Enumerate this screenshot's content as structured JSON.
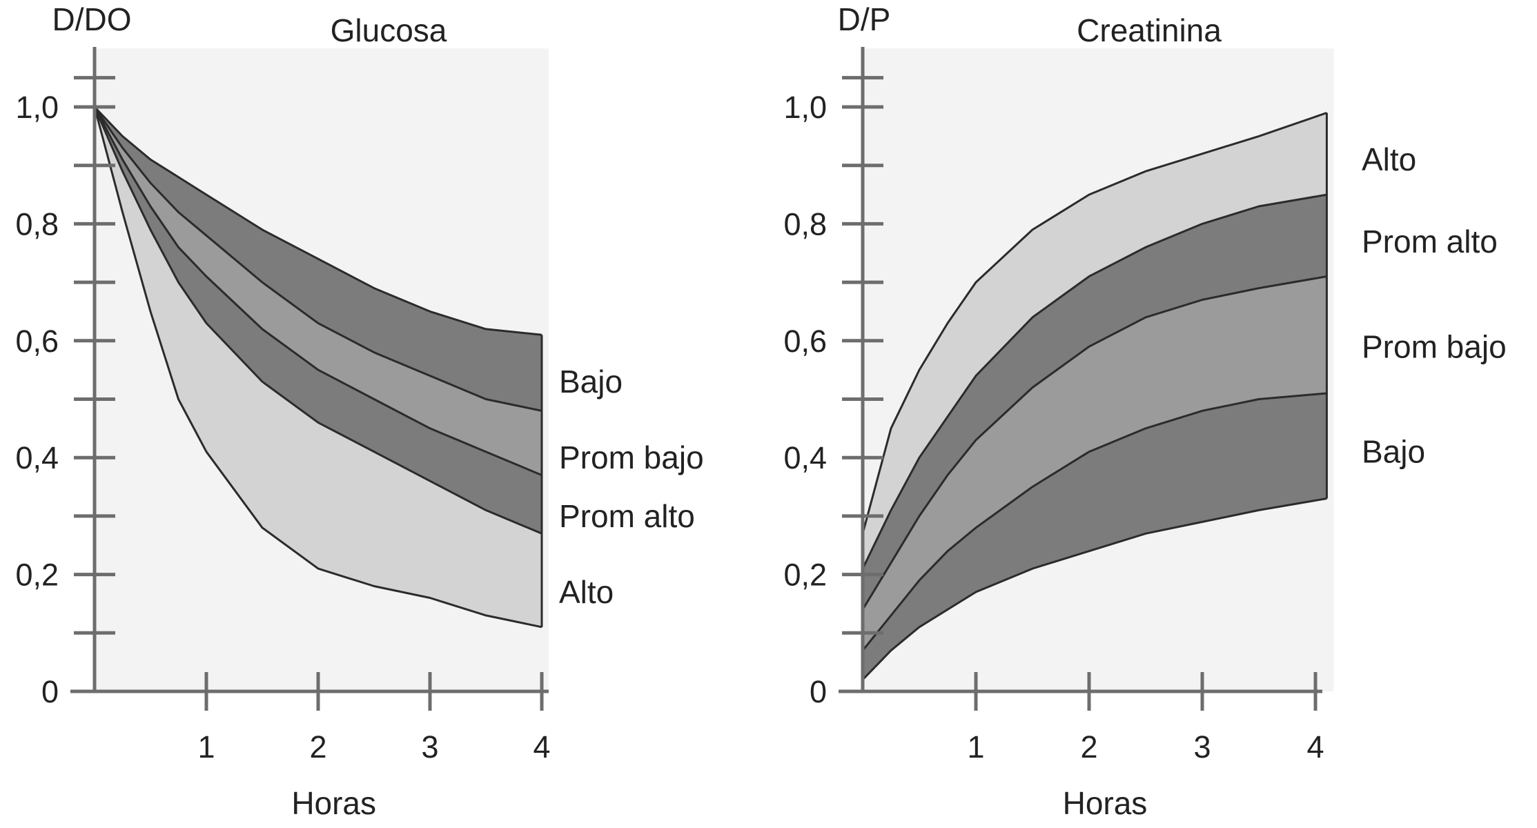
{
  "colors": {
    "band_light": "#d3d3d3",
    "band_mid": "#9b9b9b",
    "band_dark": "#7c7c7c",
    "line": "#2b2b2b",
    "axis": "#6d6d6d",
    "plot_bg": "#f3f3f3",
    "text": "#222222"
  },
  "chart_data": [
    {
      "type": "area",
      "title": "Glucosa",
      "ylabel": "D/DO",
      "xlabel": "Horas",
      "xlim": [
        0,
        4
      ],
      "ylim": [
        0,
        1.1
      ],
      "x_ticks": [
        1,
        2,
        3,
        4
      ],
      "x_tick_labels": [
        "1",
        "2",
        "3",
        "4"
      ],
      "y_labeled_ticks": [
        0,
        0.2,
        0.4,
        0.6,
        0.8,
        1.0
      ],
      "y_tick_labels": [
        "0",
        "0,2",
        "0,4",
        "0,6",
        "0,8",
        "1,0"
      ],
      "y_minor_ticks": [
        0.1,
        0.3,
        0.5,
        0.7,
        0.9,
        1.05
      ],
      "grid": false,
      "x": [
        0,
        0.25,
        0.5,
        0.75,
        1,
        1.5,
        2,
        2.5,
        3,
        3.5,
        4
      ],
      "boundaries": [
        [
          1.0,
          0.95,
          0.91,
          0.88,
          0.85,
          0.79,
          0.74,
          0.69,
          0.65,
          0.62,
          0.61
        ],
        [
          1.0,
          0.93,
          0.87,
          0.82,
          0.78,
          0.7,
          0.63,
          0.58,
          0.54,
          0.5,
          0.48
        ],
        [
          1.0,
          0.91,
          0.83,
          0.76,
          0.71,
          0.62,
          0.55,
          0.5,
          0.45,
          0.41,
          0.37
        ],
        [
          1.0,
          0.89,
          0.79,
          0.7,
          0.63,
          0.53,
          0.46,
          0.41,
          0.36,
          0.31,
          0.27
        ],
        [
          1.0,
          0.82,
          0.65,
          0.5,
          0.41,
          0.28,
          0.21,
          0.18,
          0.16,
          0.13,
          0.11
        ]
      ],
      "band_labels": [
        "Bajo",
        "Prom bajo",
        "Prom alto",
        "Alto"
      ],
      "band_label_values": [
        0.53,
        0.4,
        0.3,
        0.17
      ]
    },
    {
      "type": "area",
      "title": "Creatinina",
      "ylabel": "D/P",
      "xlabel": "Horas",
      "xlim": [
        0,
        4
      ],
      "ylim": [
        0,
        1.1
      ],
      "x_ticks": [
        1,
        2,
        3,
        4
      ],
      "x_tick_labels": [
        "1",
        "2",
        "3",
        "4"
      ],
      "y_labeled_ticks": [
        0,
        0.2,
        0.4,
        0.6,
        0.8,
        1.0
      ],
      "y_tick_labels": [
        "0",
        "0,2",
        "0,4",
        "0,6",
        "0,8",
        "1,0"
      ],
      "y_minor_ticks": [
        0.1,
        0.3,
        0.5,
        0.7,
        0.9,
        1.05
      ],
      "grid": false,
      "x": [
        0,
        0.25,
        0.5,
        0.75,
        1,
        1.5,
        2,
        2.5,
        3,
        3.5,
        4.1
      ],
      "boundaries": [
        [
          0.27,
          0.45,
          0.55,
          0.63,
          0.7,
          0.79,
          0.85,
          0.89,
          0.92,
          0.95,
          0.99
        ],
        [
          0.21,
          0.31,
          0.4,
          0.47,
          0.54,
          0.64,
          0.71,
          0.76,
          0.8,
          0.83,
          0.85
        ],
        [
          0.14,
          0.22,
          0.3,
          0.37,
          0.43,
          0.52,
          0.59,
          0.64,
          0.67,
          0.69,
          0.71
        ],
        [
          0.07,
          0.13,
          0.19,
          0.24,
          0.28,
          0.35,
          0.41,
          0.45,
          0.48,
          0.5,
          0.51
        ],
        [
          0.02,
          0.07,
          0.11,
          0.14,
          0.17,
          0.21,
          0.24,
          0.27,
          0.29,
          0.31,
          0.33
        ]
      ],
      "band_labels": [
        "Alto",
        "Prom alto",
        "Prom bajo",
        "Bajo"
      ],
      "band_label_values": [
        0.91,
        0.77,
        0.59,
        0.41
      ]
    }
  ]
}
